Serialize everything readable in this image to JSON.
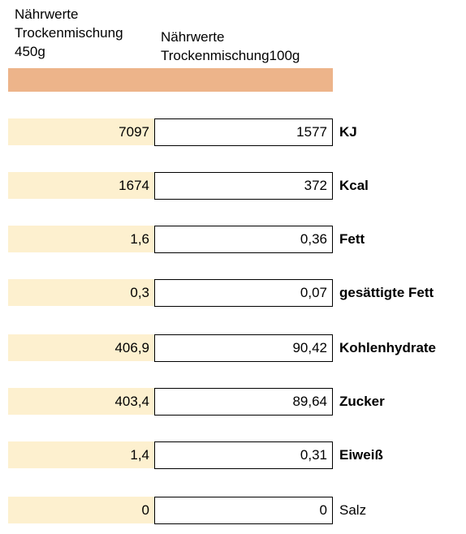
{
  "headers": {
    "col1": "Nährwerte\nTrockenmischung\n450g",
    "col2": "Nährwerte\nTrockenmischung100g"
  },
  "rows": [
    {
      "value_450g": "7097",
      "value_100g": "1577",
      "label": "KJ",
      "bold": true
    },
    {
      "value_450g": "1674",
      "value_100g": "372",
      "label": "Kcal",
      "bold": true
    },
    {
      "value_450g": "1,6",
      "value_100g": "0,36",
      "label": "Fett",
      "bold": true
    },
    {
      "value_450g": "0,3",
      "value_100g": "0,07",
      "label": "gesättigte Fett",
      "bold": true
    },
    {
      "value_450g": "406,9",
      "value_100g": "90,42",
      "label": "Kohlenhydrate",
      "bold": true
    },
    {
      "value_450g": "403,4",
      "value_100g": "89,64",
      "label": "Zucker",
      "bold": true
    },
    {
      "value_450g": "1,4",
      "value_100g": "0,31",
      "label": "Eiweiß",
      "bold": true
    },
    {
      "value_450g": "0",
      "value_100g": "0",
      "label": "Salz",
      "bold": false
    }
  ],
  "colors": {
    "header_band": "#edb48a",
    "cell_highlight": "#fdf0cf"
  }
}
